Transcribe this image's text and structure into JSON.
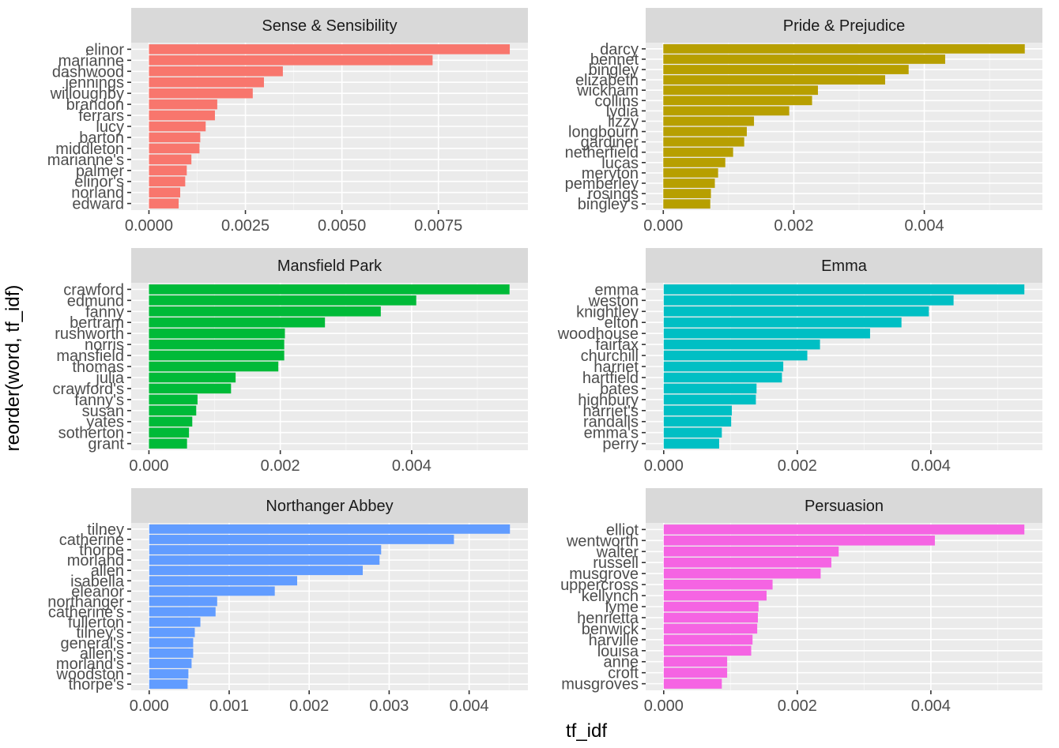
{
  "figure": {
    "xlabel": "tf_idf",
    "ylabel": "reorder(word, tf_idf)"
  },
  "chart_data": [
    {
      "type": "bar",
      "orientation": "horizontal",
      "title": "Sense & Sensibility",
      "color": "#F8766D",
      "categories": [
        "elinor",
        "marianne",
        "dashwood",
        "jennings",
        "willoughby",
        "brandon",
        "ferrars",
        "lucy",
        "barton",
        "middleton",
        "marianne's",
        "palmer",
        "elinor's",
        "norland",
        "edward"
      ],
      "values": [
        0.00935,
        0.00735,
        0.00347,
        0.00298,
        0.00269,
        0.00177,
        0.00171,
        0.00147,
        0.00133,
        0.00131,
        0.0011,
        0.00098,
        0.00094,
        0.00081,
        0.00077
      ],
      "xlim": [
        -0.00046,
        0.00982
      ],
      "xticks": [
        0.0,
        0.0025,
        0.005,
        0.0075
      ],
      "xtick_labels": [
        "0.0000",
        "0.0025",
        "0.0050",
        "0.0075"
      ]
    },
    {
      "type": "bar",
      "orientation": "horizontal",
      "title": "Pride & Prejudice",
      "color": "#B79F00",
      "categories": [
        "darcy",
        "bennet",
        "bingley",
        "elizabeth",
        "wickham",
        "collins",
        "lydia",
        "lizzy",
        "longbourn",
        "gardiner",
        "netherfield",
        "lucas",
        "meryton",
        "pemberley",
        "rosings",
        "bingley's"
      ],
      "values": [
        0.00554,
        0.00432,
        0.00376,
        0.0034,
        0.00237,
        0.00228,
        0.00193,
        0.00139,
        0.00128,
        0.00124,
        0.00107,
        0.00095,
        0.00084,
        0.00079,
        0.00073,
        0.00072
      ],
      "xlim": [
        -0.00027,
        0.00581
      ],
      "xticks": [
        0.0,
        0.002,
        0.004
      ],
      "xtick_labels": [
        "0.000",
        "0.002",
        "0.004"
      ]
    },
    {
      "type": "bar",
      "orientation": "horizontal",
      "title": "Mansfield Park",
      "color": "#00BA38",
      "categories": [
        "crawford",
        "edmund",
        "fanny",
        "bertram",
        "rushworth",
        "norris",
        "mansfield",
        "thomas",
        "julia",
        "crawford's",
        "fanny's",
        "susan",
        "yates",
        "sotherton",
        "grant"
      ],
      "values": [
        0.00549,
        0.00407,
        0.00353,
        0.00268,
        0.00207,
        0.00206,
        0.00206,
        0.00197,
        0.00132,
        0.00125,
        0.00074,
        0.00072,
        0.00066,
        0.00061,
        0.00058
      ],
      "xlim": [
        -0.00027,
        0.00577
      ],
      "xticks": [
        0.0,
        0.002,
        0.004
      ],
      "xtick_labels": [
        "0.000",
        "0.002",
        "0.004"
      ]
    },
    {
      "type": "bar",
      "orientation": "horizontal",
      "title": "Emma",
      "color": "#00BFC4",
      "categories": [
        "emma",
        "weston",
        "knightley",
        "elton",
        "woodhouse",
        "fairfax",
        "churchill",
        "harriet",
        "hartfield",
        "bates",
        "highbury",
        "harriet's",
        "randalls",
        "emma's",
        "perry"
      ],
      "values": [
        0.0054,
        0.00434,
        0.00397,
        0.00356,
        0.00309,
        0.00234,
        0.00215,
        0.00179,
        0.00177,
        0.00139,
        0.00138,
        0.00102,
        0.00101,
        0.00087,
        0.00083
      ],
      "xlim": [
        -0.00027,
        0.00567
      ],
      "xticks": [
        0.0,
        0.002,
        0.004
      ],
      "xtick_labels": [
        "0.000",
        "0.002",
        "0.004"
      ]
    },
    {
      "type": "bar",
      "orientation": "horizontal",
      "title": "Northanger Abbey",
      "color": "#619CFF",
      "categories": [
        "tilney",
        "catherine",
        "thorpe",
        "morland",
        "allen",
        "isabella",
        "eleanor",
        "northanger",
        "catherine's",
        "fullerton",
        "tilney's",
        "general's",
        "allen's",
        "morland's",
        "woodston",
        "thorpe's"
      ],
      "values": [
        0.00451,
        0.00381,
        0.0029,
        0.00288,
        0.00267,
        0.00185,
        0.00157,
        0.00085,
        0.00083,
        0.00064,
        0.00057,
        0.00055,
        0.00055,
        0.00053,
        0.00049,
        0.00048
      ],
      "xlim": [
        -0.000225,
        0.004735
      ],
      "xticks": [
        0.0,
        0.001,
        0.002,
        0.003,
        0.004
      ],
      "xtick_labels": [
        "0.000",
        "0.001",
        "0.002",
        "0.003",
        "0.004"
      ]
    },
    {
      "type": "bar",
      "orientation": "horizontal",
      "title": "Persuasion",
      "color": "#F564E3",
      "categories": [
        "elliot",
        "wentworth",
        "walter",
        "russell",
        "musgrove",
        "uppercross",
        "kellynch",
        "lyme",
        "henrietta",
        "benwick",
        "harville",
        "louisa",
        "anne",
        "croft",
        "musgroves"
      ],
      "values": [
        0.0054,
        0.00406,
        0.00262,
        0.00251,
        0.00235,
        0.00163,
        0.00154,
        0.00142,
        0.00141,
        0.0014,
        0.00133,
        0.00131,
        0.00095,
        0.00095,
        0.00087
      ],
      "xlim": [
        -0.00027,
        0.00567
      ],
      "xticks": [
        0.0,
        0.002,
        0.004
      ],
      "xtick_labels": [
        "0.000",
        "0.002",
        "0.004"
      ]
    }
  ]
}
